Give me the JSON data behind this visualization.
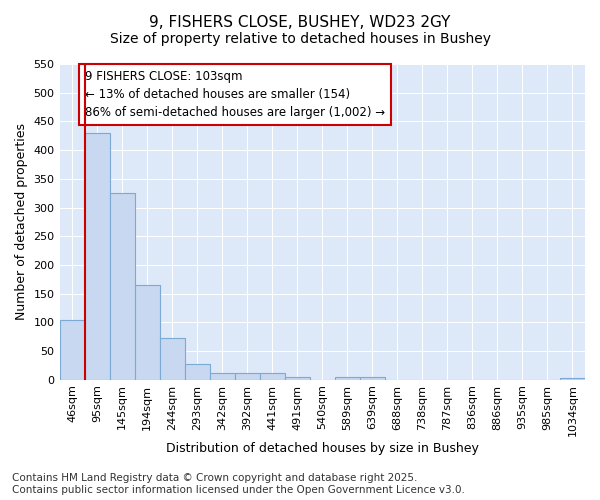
{
  "title": "9, FISHERS CLOSE, BUSHEY, WD23 2GY",
  "subtitle": "Size of property relative to detached houses in Bushey",
  "xlabel": "Distribution of detached houses by size in Bushey",
  "ylabel": "Number of detached properties",
  "categories": [
    "46sqm",
    "95sqm",
    "145sqm",
    "194sqm",
    "244sqm",
    "293sqm",
    "342sqm",
    "392sqm",
    "441sqm",
    "491sqm",
    "540sqm",
    "589sqm",
    "639sqm",
    "688sqm",
    "738sqm",
    "787sqm",
    "836sqm",
    "886sqm",
    "935sqm",
    "985sqm",
    "1034sqm"
  ],
  "values": [
    104,
    430,
    325,
    165,
    73,
    27,
    12,
    12,
    12,
    5,
    0,
    5,
    5,
    0,
    0,
    0,
    0,
    0,
    0,
    0,
    3
  ],
  "bar_color": "#c8d8f0",
  "bar_edge_color": "#7baad4",
  "vline_color": "#cc0000",
  "annotation_line1": "9 FISHERS CLOSE: 103sqm",
  "annotation_line2": "← 13% of detached houses are smaller (154)",
  "annotation_line3": "86% of semi-detached houses are larger (1,002) →",
  "annotation_box_color": "#cc0000",
  "ylim": [
    0,
    550
  ],
  "yticks": [
    0,
    50,
    100,
    150,
    200,
    250,
    300,
    350,
    400,
    450,
    500,
    550
  ],
  "footer_text": "Contains HM Land Registry data © Crown copyright and database right 2025.\nContains public sector information licensed under the Open Government Licence v3.0.",
  "bg_color": "#ffffff",
  "plot_bg_color": "#dde8f8",
  "grid_color": "#ffffff",
  "title_fontsize": 11,
  "subtitle_fontsize": 10,
  "axis_label_fontsize": 9,
  "tick_fontsize": 8,
  "annotation_fontsize": 8.5,
  "footer_fontsize": 7.5
}
